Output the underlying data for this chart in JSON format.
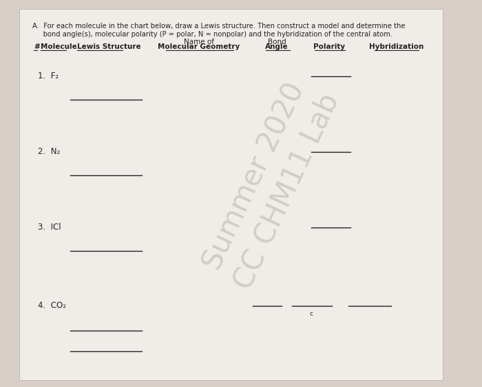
{
  "title_line1": "A.  For each molecule in the chart below, draw a Lewis structure. Then construct a model and determine the",
  "title_line2": "     bond angle(s), molecular polarity (P = polar, N = nonpolar) and the hybridization of the central atom.",
  "col_headers": {
    "num": "#",
    "molecule": "Molecule",
    "lewis": "Lewis Structure",
    "name_geo_line1": "Name of",
    "name_geo_line2": "Molecular Geometry",
    "bond_angle_line1": "Bond",
    "bond_angle_line2": "Angle",
    "polarity": "Polarity",
    "hybridization": "Hybridization"
  },
  "molecules": [
    "1.  F₂",
    "2.  N₂",
    "3.  ICl",
    "4.  CO₂"
  ],
  "watermark_line1": "Summer 2020",
  "watermark_line2": "CC CHM11 Lab",
  "bg_color": "#d8d0c8",
  "paper_color": "#f0ede8",
  "line_color": "#222222",
  "small_c_label": "c",
  "watermark_color": "#c0b8b0",
  "watermark_alpha": 0.6,
  "watermark_fontsize": 30,
  "watermark_rotation": 65
}
